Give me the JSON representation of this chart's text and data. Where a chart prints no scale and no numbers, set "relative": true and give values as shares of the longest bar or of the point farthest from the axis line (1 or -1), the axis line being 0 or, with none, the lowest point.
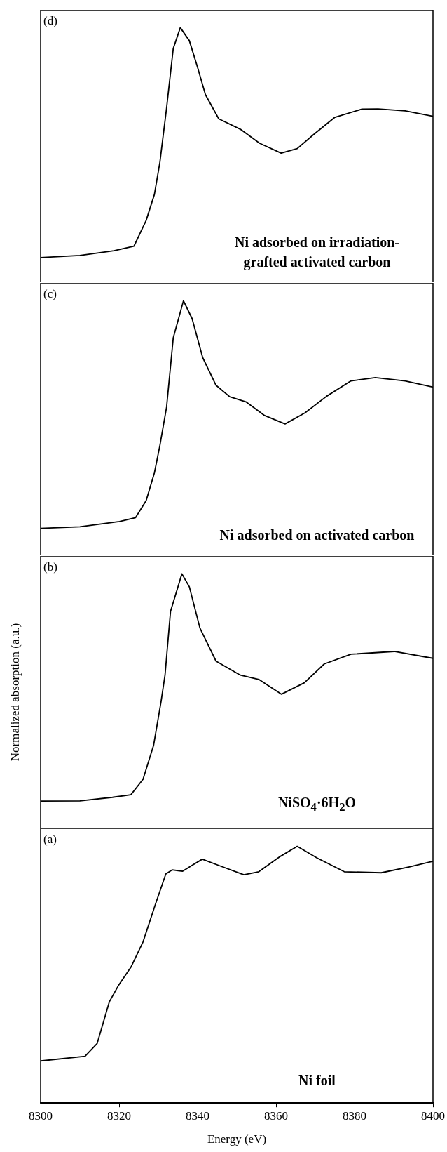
{
  "chart_data": [
    {
      "type": "line",
      "relative": true,
      "color": "#000000",
      "marker": "none",
      "tick_labels": false,
      "xlim": [
        8300,
        8400
      ],
      "xticks": [
        8300,
        8320,
        8340,
        8360,
        8380,
        8400
      ],
      "annotations": [
        "(d)",
        "Ni adsorbed on irradiation-grafted activated carbon"
      ],
      "x": [
        8300,
        8310,
        8318.7,
        8323.8,
        8326.9,
        8329.0,
        8330.4,
        8332.1,
        8333.8,
        8335.6,
        8337.9,
        8340.0,
        8342.0,
        8345.4,
        8350.9,
        8355.8,
        8361.3,
        8365.4,
        8369.5,
        8375,
        8381.9,
        8386,
        8392.9,
        8400
      ],
      "values": [
        0.097,
        0.105,
        0.124,
        0.142,
        0.243,
        0.345,
        0.472,
        0.684,
        0.918,
        1.0,
        0.949,
        0.844,
        0.737,
        0.642,
        0.601,
        0.546,
        0.507,
        0.525,
        0.579,
        0.648,
        0.68,
        0.681,
        0.673,
        0.652
      ]
    },
    {
      "type": "line",
      "relative": true,
      "color": "#000000",
      "marker": "none",
      "tick_labels": false,
      "xlim": [
        8300,
        8400
      ],
      "xticks": [
        8300,
        8320,
        8340,
        8360,
        8380,
        8400
      ],
      "annotations": [
        "(c)",
        "Ni adsorbed on activated carbon"
      ],
      "x": [
        8300,
        8310,
        8320.1,
        8324.2,
        8326.9,
        8329.0,
        8330.4,
        8332.1,
        8333.8,
        8336.4,
        8338.6,
        8341.3,
        8344.7,
        8348.2,
        8352.3,
        8357.1,
        8362.3,
        8367.4,
        8372.9,
        8379.1,
        8385.3,
        8392.9,
        8400
      ],
      "values": [
        0.106,
        0.112,
        0.133,
        0.148,
        0.215,
        0.324,
        0.432,
        0.582,
        0.854,
        1.0,
        0.93,
        0.777,
        0.668,
        0.623,
        0.603,
        0.549,
        0.516,
        0.56,
        0.625,
        0.685,
        0.698,
        0.685,
        0.661
      ]
    },
    {
      "type": "line",
      "relative": true,
      "color": "#000000",
      "marker": "none",
      "tick_labels": false,
      "xlim": [
        8300,
        8400
      ],
      "xticks": [
        8300,
        8320,
        8340,
        8360,
        8380,
        8400
      ],
      "annotations": [
        "(b)",
        "NiSO$_{4}$·6H$_{2}$O"
      ],
      "ylabel": "Normalized absorption (a.u.)",
      "x": [
        8300,
        8310,
        8318.3,
        8323.0,
        8326.1,
        8328.8,
        8330.7,
        8331.7,
        8333.1,
        8336.0,
        8337.9,
        8340.6,
        8344.7,
        8350.9,
        8355.6,
        8361.4,
        8367.2,
        8372.3,
        8379.1,
        8390.1,
        8400
      ],
      "values": [
        0.107,
        0.108,
        0.122,
        0.132,
        0.193,
        0.327,
        0.499,
        0.602,
        0.852,
        1.0,
        0.949,
        0.787,
        0.657,
        0.602,
        0.585,
        0.527,
        0.572,
        0.646,
        0.684,
        0.695,
        0.668
      ]
    },
    {
      "type": "line",
      "relative": true,
      "color": "#000000",
      "marker": "none",
      "tick_labels": "x",
      "xlim": [
        8300,
        8400
      ],
      "xticks": [
        8300,
        8320,
        8340,
        8360,
        8380,
        8400
      ],
      "xlabel": "Energy (eV)",
      "annotations": [
        "(a)",
        "Ni foil"
      ],
      "x": [
        8300,
        8311.3,
        8314.4,
        8317.5,
        8319.8,
        8323,
        8326.1,
        8329.2,
        8331.9,
        8333.5,
        8336.2,
        8338.5,
        8341.2,
        8345.5,
        8351.8,
        8355.6,
        8361.1,
        8365.4,
        8370.4,
        8377.4,
        8386.8,
        8393.8,
        8400
      ],
      "values": [
        0.164,
        0.182,
        0.232,
        0.394,
        0.457,
        0.529,
        0.628,
        0.772,
        0.892,
        0.908,
        0.903,
        0.925,
        0.95,
        0.925,
        0.889,
        0.901,
        0.961,
        1.0,
        0.955,
        0.901,
        0.897,
        0.919,
        0.942
      ]
    }
  ]
}
